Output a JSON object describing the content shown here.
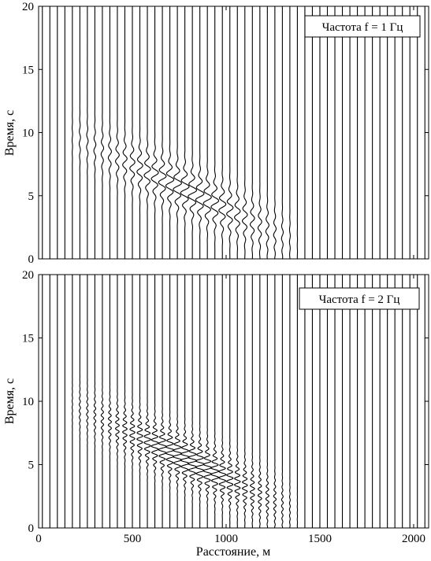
{
  "chart_data": [
    {
      "type": "line",
      "chart_kind": "wiggle-trace seismogram",
      "title": "",
      "annotation": "Частота f = 1 Гц",
      "annotation_position": "top-right",
      "xlabel": "",
      "ylabel": "Время, с",
      "xlim": [
        0,
        2080
      ],
      "ylim": [
        0,
        20
      ],
      "yticks": [
        0,
        5,
        10,
        15,
        20
      ],
      "xtick_labels_shown": false,
      "trace_spacing_m": 40,
      "trace_count": 52,
      "events": [
        {
          "kind": "dispersive surface-wave packet",
          "x_start": 200,
          "x_end": 1280,
          "t_at_start": 9.5,
          "t_at_end": 2.0,
          "frequency_hz": 1,
          "max_amplitude_at_x": 800
        }
      ]
    },
    {
      "type": "line",
      "chart_kind": "wiggle-trace seismogram",
      "title": "",
      "annotation": "Частота f = 2 Гц",
      "annotation_position": "top-right",
      "xlabel": "Расстояние, м",
      "ylabel": "Время, с",
      "xlim": [
        0,
        2080
      ],
      "ylim": [
        0,
        20
      ],
      "yticks": [
        0,
        5,
        10,
        15,
        20
      ],
      "xticks": [
        0,
        500,
        1000,
        1500,
        2000
      ],
      "xtick_labels_shown": true,
      "trace_spacing_m": 40,
      "trace_count": 52,
      "events": [
        {
          "kind": "dispersive surface-wave packet",
          "x_start": 200,
          "x_end": 1280,
          "t_at_start": 9.5,
          "t_at_end": 2.0,
          "frequency_hz": 2,
          "max_amplitude_at_x": 800
        }
      ]
    }
  ]
}
